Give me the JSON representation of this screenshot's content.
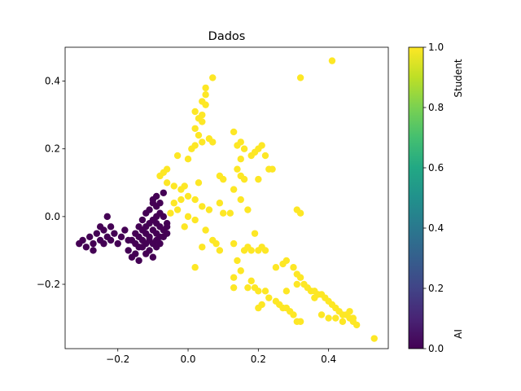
{
  "chart_data": {
    "type": "scatter",
    "title": "Dados",
    "xlabel": "",
    "ylabel": "",
    "xlim": [
      -0.35,
      0.57
    ],
    "ylim": [
      -0.39,
      0.5
    ],
    "x_ticks": [
      -0.2,
      0.0,
      0.2,
      0.4
    ],
    "x_tick_labels": [
      "−0.2",
      "0.0",
      "0.2",
      "0.4"
    ],
    "y_ticks": [
      -0.2,
      0.0,
      0.2,
      0.4
    ],
    "y_tick_labels": [
      "−0.2",
      "0.0",
      "0.2",
      "0.4"
    ],
    "grid": false,
    "colormap": "viridis",
    "color_scale": {
      "min": 0.0,
      "max": 1.0,
      "ticks": [
        0.0,
        0.2,
        0.4,
        0.6,
        0.8,
        1.0
      ],
      "tick_labels": [
        "0.0",
        "0.2",
        "0.4",
        "0.6",
        "0.8",
        "1.0"
      ],
      "low_label": "AI",
      "high_label": "Student"
    },
    "colors": {
      "class_0": "#440154",
      "class_1": "#fde725"
    },
    "series": [
      {
        "class_value": 1,
        "points": [
          [
            0.41,
            0.46
          ],
          [
            0.32,
            0.41
          ],
          [
            0.07,
            0.41
          ],
          [
            0.05,
            0.38
          ],
          [
            0.05,
            0.36
          ],
          [
            0.04,
            0.34
          ],
          [
            0.05,
            0.33
          ],
          [
            0.02,
            0.31
          ],
          [
            0.04,
            0.3
          ],
          [
            0.03,
            0.29
          ],
          [
            0.04,
            0.28
          ],
          [
            0.02,
            0.26
          ],
          [
            0.03,
            0.24
          ],
          [
            0.04,
            0.22
          ],
          [
            0.02,
            0.21
          ],
          [
            0.01,
            0.2
          ],
          [
            0.06,
            0.23
          ],
          [
            0.07,
            0.22
          ],
          [
            -0.03,
            0.18
          ],
          [
            0.0,
            0.17
          ],
          [
            -0.06,
            0.14
          ],
          [
            -0.07,
            0.13
          ],
          [
            -0.08,
            0.12
          ],
          [
            -0.06,
            0.1
          ],
          [
            -0.04,
            0.09
          ],
          [
            -0.02,
            0.08
          ],
          [
            -0.01,
            0.09
          ],
          [
            0.03,
            0.1
          ],
          [
            0.0,
            0.06
          ],
          [
            -0.02,
            0.05
          ],
          [
            -0.04,
            0.04
          ],
          [
            0.02,
            0.05
          ],
          [
            0.04,
            0.03
          ],
          [
            0.06,
            0.02
          ],
          [
            -0.03,
            0.02
          ],
          [
            -0.05,
            0.01
          ],
          [
            0.0,
            0.0
          ],
          [
            0.02,
            -0.01
          ],
          [
            -0.01,
            -0.03
          ],
          [
            0.05,
            -0.04
          ],
          [
            0.09,
            0.04
          ],
          [
            0.1,
            0.01
          ],
          [
            0.13,
            0.25
          ],
          [
            0.14,
            0.21
          ],
          [
            0.15,
            0.22
          ],
          [
            0.16,
            0.2
          ],
          [
            0.18,
            0.18
          ],
          [
            0.19,
            0.19
          ],
          [
            0.2,
            0.2
          ],
          [
            0.21,
            0.21
          ],
          [
            0.22,
            0.18
          ],
          [
            0.23,
            0.14
          ],
          [
            0.24,
            0.14
          ],
          [
            0.2,
            0.11
          ],
          [
            0.15,
            0.17
          ],
          [
            0.14,
            0.14
          ],
          [
            0.15,
            0.12
          ],
          [
            0.16,
            0.11
          ],
          [
            0.13,
            0.08
          ],
          [
            0.15,
            0.05
          ],
          [
            0.17,
            0.02
          ],
          [
            0.12,
            0.01
          ],
          [
            0.09,
            0.12
          ],
          [
            0.1,
            0.11
          ],
          [
            0.31,
            0.02
          ],
          [
            0.32,
            0.01
          ],
          [
            0.19,
            -0.05
          ],
          [
            0.16,
            -0.1
          ],
          [
            0.17,
            -0.09
          ],
          [
            0.18,
            -0.1
          ],
          [
            0.2,
            -0.1
          ],
          [
            0.22,
            -0.1
          ],
          [
            0.21,
            -0.09
          ],
          [
            0.13,
            -0.08
          ],
          [
            0.14,
            -0.13
          ],
          [
            0.15,
            -0.16
          ],
          [
            0.13,
            -0.18
          ],
          [
            0.13,
            -0.21
          ],
          [
            0.17,
            -0.21
          ],
          [
            0.18,
            -0.19
          ],
          [
            0.19,
            -0.21
          ],
          [
            0.2,
            -0.22
          ],
          [
            0.22,
            -0.22
          ],
          [
            0.23,
            -0.24
          ],
          [
            0.25,
            -0.25
          ],
          [
            0.26,
            -0.26
          ],
          [
            0.27,
            -0.27
          ],
          [
            0.28,
            -0.27
          ],
          [
            0.29,
            -0.28
          ],
          [
            0.3,
            -0.29
          ],
          [
            0.31,
            -0.31
          ],
          [
            0.32,
            -0.31
          ],
          [
            0.2,
            -0.27
          ],
          [
            0.21,
            -0.26
          ],
          [
            0.07,
            -0.07
          ],
          [
            0.08,
            -0.08
          ],
          [
            0.09,
            -0.1
          ],
          [
            0.04,
            -0.09
          ],
          [
            0.02,
            -0.15
          ],
          [
            0.25,
            -0.15
          ],
          [
            0.27,
            -0.14
          ],
          [
            0.28,
            -0.13
          ],
          [
            0.3,
            -0.15
          ],
          [
            0.31,
            -0.17
          ],
          [
            0.32,
            -0.18
          ],
          [
            0.33,
            -0.2
          ],
          [
            0.34,
            -0.21
          ],
          [
            0.35,
            -0.22
          ],
          [
            0.36,
            -0.22
          ],
          [
            0.37,
            -0.23
          ],
          [
            0.38,
            -0.23
          ],
          [
            0.39,
            -0.24
          ],
          [
            0.4,
            -0.25
          ],
          [
            0.41,
            -0.26
          ],
          [
            0.42,
            -0.27
          ],
          [
            0.43,
            -0.28
          ],
          [
            0.44,
            -0.29
          ],
          [
            0.45,
            -0.29
          ],
          [
            0.46,
            -0.3
          ],
          [
            0.47,
            -0.31
          ],
          [
            0.48,
            -0.32
          ],
          [
            0.38,
            -0.29
          ],
          [
            0.4,
            -0.3
          ],
          [
            0.42,
            -0.3
          ],
          [
            0.44,
            -0.31
          ],
          [
            0.46,
            -0.28
          ],
          [
            0.47,
            -0.3
          ],
          [
            0.53,
            -0.36
          ],
          [
            0.36,
            -0.24
          ],
          [
            0.31,
            -0.2
          ],
          [
            0.28,
            -0.22
          ]
        ]
      },
      {
        "class_value": 0,
        "points": [
          [
            -0.31,
            -0.08
          ],
          [
            -0.3,
            -0.07
          ],
          [
            -0.29,
            -0.09
          ],
          [
            -0.28,
            -0.06
          ],
          [
            -0.27,
            -0.08
          ],
          [
            -0.27,
            -0.1
          ],
          [
            -0.26,
            -0.05
          ],
          [
            -0.25,
            -0.07
          ],
          [
            -0.24,
            -0.04
          ],
          [
            -0.24,
            -0.08
          ],
          [
            -0.23,
            -0.06
          ],
          [
            -0.22,
            -0.03
          ],
          [
            -0.22,
            -0.07
          ],
          [
            -0.21,
            -0.05
          ],
          [
            -0.2,
            -0.08
          ],
          [
            -0.19,
            -0.06
          ],
          [
            -0.18,
            -0.04
          ],
          [
            -0.17,
            -0.07
          ],
          [
            -0.23,
            0.0
          ],
          [
            -0.25,
            -0.03
          ],
          [
            -0.17,
            -0.1
          ],
          [
            -0.16,
            -0.12
          ],
          [
            -0.15,
            -0.11
          ],
          [
            -0.14,
            -0.13
          ],
          [
            -0.13,
            -0.09
          ],
          [
            -0.12,
            -0.11
          ],
          [
            -0.11,
            -0.1
          ],
          [
            -0.1,
            -0.12
          ],
          [
            -0.09,
            -0.09
          ],
          [
            -0.08,
            -0.08
          ],
          [
            -0.07,
            -0.06
          ],
          [
            -0.06,
            -0.05
          ],
          [
            -0.15,
            -0.05
          ],
          [
            -0.14,
            -0.03
          ],
          [
            -0.13,
            -0.01
          ],
          [
            -0.12,
            0.01
          ],
          [
            -0.11,
            0.02
          ],
          [
            -0.1,
            0.04
          ],
          [
            -0.1,
            0.05
          ],
          [
            -0.09,
            0.03
          ],
          [
            -0.08,
            0.01
          ],
          [
            -0.07,
            0.0
          ],
          [
            -0.06,
            -0.02
          ],
          [
            -0.09,
            -0.02
          ],
          [
            -0.16,
            -0.07
          ],
          [
            -0.15,
            -0.08
          ],
          [
            -0.14,
            -0.06
          ],
          [
            -0.13,
            -0.07
          ],
          [
            -0.12,
            -0.05
          ],
          [
            -0.11,
            -0.06
          ],
          [
            -0.1,
            -0.04
          ],
          [
            -0.09,
            -0.05
          ],
          [
            -0.08,
            -0.03
          ],
          [
            -0.12,
            -0.03
          ],
          [
            -0.11,
            -0.02
          ],
          [
            -0.1,
            -0.01
          ],
          [
            -0.09,
            0.0
          ],
          [
            -0.13,
            -0.04
          ],
          [
            -0.14,
            -0.09
          ],
          [
            -0.12,
            -0.08
          ],
          [
            -0.11,
            -0.07
          ],
          [
            -0.1,
            -0.08
          ],
          [
            -0.09,
            -0.07
          ],
          [
            -0.08,
            -0.06
          ],
          [
            -0.07,
            -0.04
          ],
          [
            -0.06,
            -0.03
          ],
          [
            -0.08,
            0.04
          ],
          [
            -0.07,
            0.07
          ],
          [
            -0.09,
            0.06
          ]
        ]
      }
    ]
  }
}
